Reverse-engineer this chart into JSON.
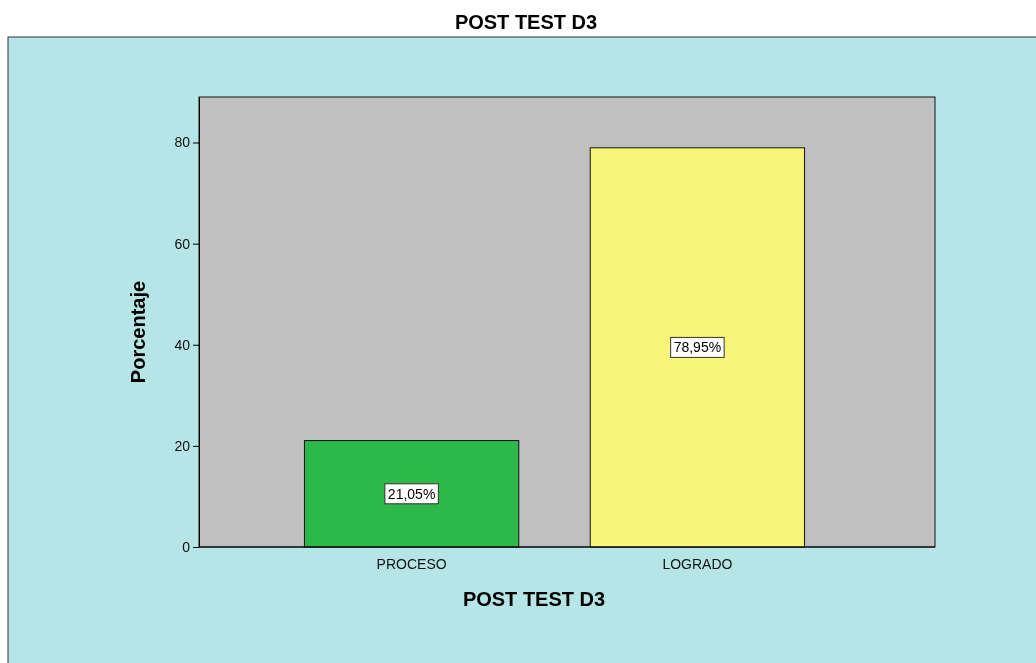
{
  "chart_data": {
    "type": "bar",
    "title": "POST TEST D3",
    "xlabel": "POST TEST D3",
    "ylabel": "Porcentaje",
    "categories": [
      "PROCESO",
      "LOGRADO"
    ],
    "values": [
      21.05,
      78.95
    ],
    "colors": [
      "#2db84a",
      "#f9f57a"
    ],
    "value_labels": [
      "21,05%",
      "78,95%"
    ],
    "ylim": [
      0,
      89
    ],
    "yticks": [
      0,
      20,
      40,
      60,
      80
    ],
    "grid": false
  }
}
